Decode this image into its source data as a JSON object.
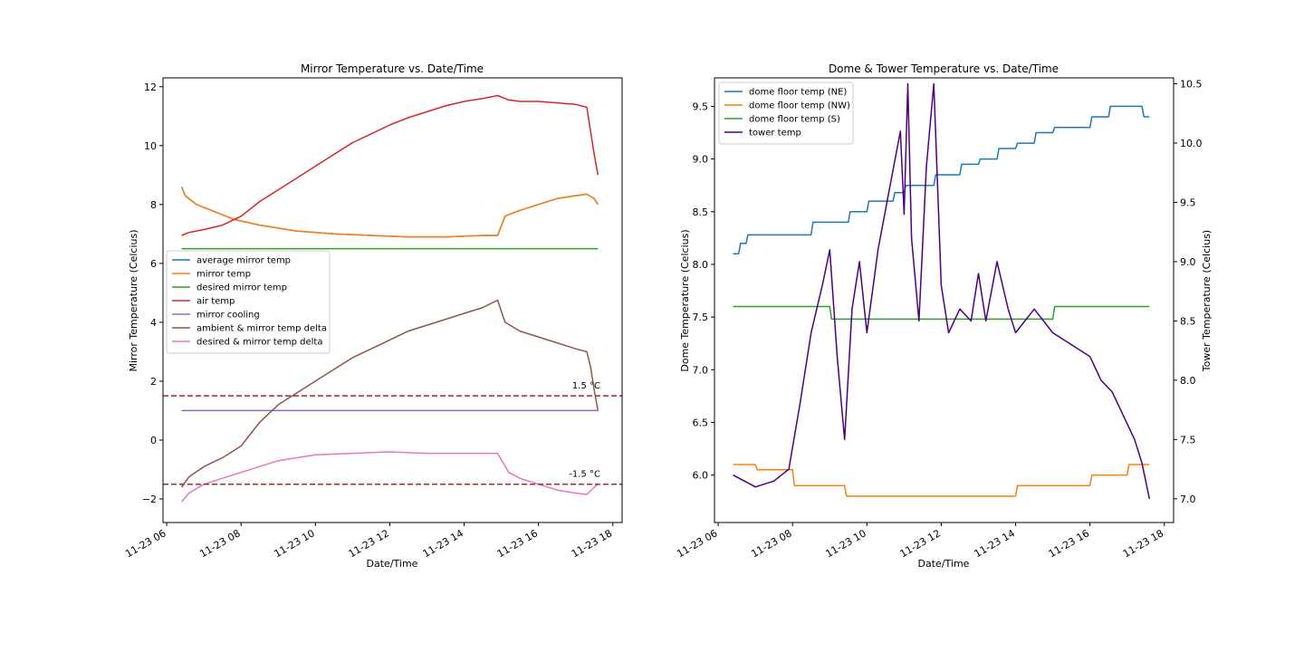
{
  "chart_data": [
    {
      "type": "line",
      "title": "Mirror Temperature vs. Date/Time",
      "xlabel": "Date/Time",
      "ylabel": "Mirror Temperature (Celcius)",
      "xlim": [
        5.9,
        18.25
      ],
      "ylim": [
        -2.8,
        12.3
      ],
      "xticks": [
        6,
        8,
        10,
        12,
        14,
        16,
        18
      ],
      "xtick_labels": [
        "11-23 06",
        "11-23 08",
        "11-23 10",
        "11-23 12",
        "11-23 14",
        "11-23 16",
        "11-23 18"
      ],
      "yticks": [
        -2,
        0,
        2,
        4,
        6,
        8,
        10,
        12
      ],
      "ytick_labels": [
        "−2",
        "0",
        "2",
        "4",
        "6",
        "8",
        "10",
        "12"
      ],
      "legend_position": "center-left",
      "series": [
        {
          "name": "average mirror temp",
          "color": "#1f77b4",
          "x": [
            6.4,
            6.5,
            6.8,
            7.2,
            7.8,
            8.5,
            9.5,
            10.5,
            11.5,
            12.5,
            13.5,
            14.5,
            14.9,
            15.1,
            15.5,
            16.0,
            16.5,
            17.0,
            17.3,
            17.5,
            17.6
          ],
          "y": [
            8.6,
            8.3,
            8.0,
            7.8,
            7.5,
            7.3,
            7.1,
            7.0,
            6.95,
            6.9,
            6.9,
            6.95,
            6.95,
            7.6,
            7.8,
            8.0,
            8.2,
            8.3,
            8.35,
            8.2,
            8.0
          ]
        },
        {
          "name": "mirror temp",
          "color": "#ff7f0e",
          "x": [
            6.4,
            6.5,
            6.8,
            7.2,
            7.8,
            8.5,
            9.5,
            10.5,
            11.5,
            12.5,
            13.5,
            14.5,
            14.9,
            15.1,
            15.5,
            16.0,
            16.5,
            17.0,
            17.3,
            17.5,
            17.6
          ],
          "y": [
            8.6,
            8.3,
            8.0,
            7.8,
            7.5,
            7.3,
            7.1,
            7.0,
            6.95,
            6.9,
            6.9,
            6.95,
            6.95,
            7.6,
            7.8,
            8.0,
            8.2,
            8.3,
            8.35,
            8.2,
            8.0
          ]
        },
        {
          "name": "desired mirror temp",
          "color": "#2ca02c",
          "x": [
            6.4,
            17.6
          ],
          "y": [
            6.5,
            6.5
          ]
        },
        {
          "name": "air temp",
          "color": "#d62728",
          "x": [
            6.4,
            6.6,
            7.0,
            7.5,
            8.0,
            8.5,
            9.0,
            9.5,
            10.0,
            10.5,
            11.0,
            11.5,
            12.0,
            12.5,
            13.0,
            13.5,
            14.0,
            14.5,
            14.9,
            15.2,
            15.5,
            16.0,
            16.5,
            17.0,
            17.3,
            17.4,
            17.5,
            17.6
          ],
          "y": [
            6.95,
            7.05,
            7.15,
            7.3,
            7.6,
            8.1,
            8.5,
            8.9,
            9.3,
            9.7,
            10.1,
            10.4,
            10.7,
            10.95,
            11.15,
            11.35,
            11.5,
            11.6,
            11.7,
            11.55,
            11.5,
            11.5,
            11.45,
            11.4,
            11.3,
            10.5,
            9.7,
            9.0
          ]
        },
        {
          "name": "mirror cooling",
          "color": "#9467bd",
          "x": [
            6.4,
            17.6
          ],
          "y": [
            1.0,
            1.0
          ]
        },
        {
          "name": "ambient & mirror temp delta",
          "color": "#8c564b",
          "x": [
            6.4,
            6.6,
            7.0,
            7.5,
            8.0,
            8.5,
            9.0,
            9.5,
            10.0,
            10.5,
            11.0,
            11.5,
            12.0,
            12.5,
            13.0,
            13.5,
            14.0,
            14.5,
            14.9,
            15.1,
            15.5,
            16.0,
            16.5,
            17.0,
            17.3,
            17.4,
            17.5,
            17.6
          ],
          "y": [
            -1.6,
            -1.25,
            -0.9,
            -0.6,
            -0.2,
            0.6,
            1.2,
            1.6,
            2.0,
            2.4,
            2.8,
            3.1,
            3.4,
            3.7,
            3.9,
            4.1,
            4.3,
            4.5,
            4.75,
            4.0,
            3.7,
            3.5,
            3.3,
            3.1,
            3.0,
            2.5,
            1.7,
            1.0
          ]
        },
        {
          "name": "desired & mirror temp delta",
          "color": "#e377c2",
          "x": [
            6.4,
            6.6,
            7.0,
            7.5,
            8.0,
            8.5,
            9.0,
            10.0,
            11.0,
            12.0,
            13.0,
            14.0,
            14.9,
            15.2,
            15.5,
            16.0,
            16.5,
            17.0,
            17.3,
            17.5,
            17.6
          ],
          "y": [
            -2.1,
            -1.8,
            -1.5,
            -1.3,
            -1.1,
            -0.9,
            -0.7,
            -0.5,
            -0.45,
            -0.4,
            -0.45,
            -0.45,
            -0.45,
            -1.1,
            -1.3,
            -1.5,
            -1.7,
            -1.8,
            -1.85,
            -1.6,
            -1.5
          ]
        }
      ],
      "hlines": [
        {
          "y": 1.5,
          "color": "#a52a2a",
          "style": "dashed",
          "label": "1.5 °C"
        },
        {
          "y": -1.5,
          "color": "#a52a2a",
          "style": "dashed",
          "label": "-1.5 °C"
        }
      ]
    },
    {
      "type": "line",
      "title": "Dome & Tower Temperature vs. Date/Time",
      "xlabel": "Date/Time",
      "ylabel": "Dome Temperature (Celcius)",
      "ylabel_right": "Tower Temperature (Celcius)",
      "xlim": [
        5.9,
        18.25
      ],
      "ylim": [
        5.55,
        9.77
      ],
      "ylim_right": [
        6.8,
        10.55
      ],
      "xticks": [
        6,
        8,
        10,
        12,
        14,
        16,
        18
      ],
      "xtick_labels": [
        "11-23 06",
        "11-23 08",
        "11-23 10",
        "11-23 12",
        "11-23 14",
        "11-23 16",
        "11-23 18"
      ],
      "yticks": [
        6.0,
        6.5,
        7.0,
        7.5,
        8.0,
        8.5,
        9.0,
        9.5
      ],
      "ytick_labels": [
        "6.0",
        "6.5",
        "7.0",
        "7.5",
        "8.0",
        "8.5",
        "9.0",
        "9.5"
      ],
      "yticks_right": [
        7.0,
        7.5,
        8.0,
        8.5,
        9.0,
        9.5,
        10.0,
        10.5
      ],
      "ytick_labels_right": [
        "7.0",
        "7.5",
        "8.0",
        "8.5",
        "9.0",
        "9.5",
        "10.0",
        "10.5"
      ],
      "legend_position": "top-left",
      "series": [
        {
          "name": "dome floor temp (NE)",
          "color": "#1f77b4",
          "axis": "left",
          "x": [
            6.4,
            6.55,
            6.6,
            6.75,
            6.8,
            8.5,
            8.55,
            9.5,
            9.55,
            10.0,
            10.05,
            10.7,
            10.75,
            11.0,
            11.05,
            11.8,
            11.85,
            12.5,
            12.55,
            13.0,
            13.05,
            13.5,
            13.55,
            14.0,
            14.05,
            14.5,
            14.55,
            15.0,
            15.05,
            16.0,
            16.05,
            16.5,
            16.55,
            17.4,
            17.45,
            17.6
          ],
          "y": [
            8.1,
            8.1,
            8.2,
            8.2,
            8.28,
            8.28,
            8.4,
            8.4,
            8.5,
            8.5,
            8.6,
            8.6,
            8.68,
            8.68,
            8.75,
            8.75,
            8.85,
            8.85,
            8.95,
            8.95,
            9.0,
            9.0,
            9.1,
            9.1,
            9.15,
            9.15,
            9.25,
            9.25,
            9.3,
            9.3,
            9.4,
            9.4,
            9.5,
            9.5,
            9.4,
            9.4
          ]
        },
        {
          "name": "dome floor temp (NW)",
          "color": "#ff7f0e",
          "axis": "left",
          "x": [
            6.4,
            7.0,
            7.05,
            8.0,
            8.05,
            9.4,
            9.45,
            14.0,
            14.05,
            16.0,
            16.05,
            17.0,
            17.05,
            17.6
          ],
          "y": [
            6.1,
            6.1,
            6.05,
            6.05,
            5.9,
            5.9,
            5.8,
            5.8,
            5.9,
            5.9,
            6.0,
            6.0,
            6.1,
            6.1
          ]
        },
        {
          "name": "dome floor temp (S)",
          "color": "#2ca02c",
          "axis": "left",
          "x": [
            6.4,
            9.0,
            9.05,
            15.0,
            15.05,
            17.6
          ],
          "y": [
            7.6,
            7.6,
            7.48,
            7.48,
            7.6,
            7.6
          ]
        },
        {
          "name": "tower temp",
          "color": "#4b0082",
          "axis": "right",
          "x": [
            6.4,
            7.0,
            7.5,
            7.9,
            8.2,
            8.5,
            8.8,
            9.0,
            9.2,
            9.4,
            9.6,
            9.8,
            10.0,
            10.3,
            10.6,
            10.9,
            11.0,
            11.1,
            11.2,
            11.4,
            11.6,
            11.8,
            12.0,
            12.2,
            12.5,
            12.8,
            13.0,
            13.2,
            13.5,
            13.8,
            14.0,
            14.5,
            15.0,
            15.5,
            16.0,
            16.3,
            16.6,
            16.9,
            17.2,
            17.4,
            17.6
          ],
          "y": [
            7.2,
            7.1,
            7.15,
            7.25,
            7.8,
            8.4,
            8.8,
            9.1,
            8.2,
            7.5,
            8.6,
            9.0,
            8.4,
            9.1,
            9.6,
            10.1,
            9.4,
            10.5,
            9.2,
            8.5,
            9.8,
            10.5,
            8.8,
            8.4,
            8.6,
            8.5,
            8.9,
            8.5,
            9.0,
            8.6,
            8.4,
            8.6,
            8.4,
            8.3,
            8.2,
            8.0,
            7.9,
            7.7,
            7.5,
            7.3,
            7.0
          ]
        }
      ]
    }
  ]
}
